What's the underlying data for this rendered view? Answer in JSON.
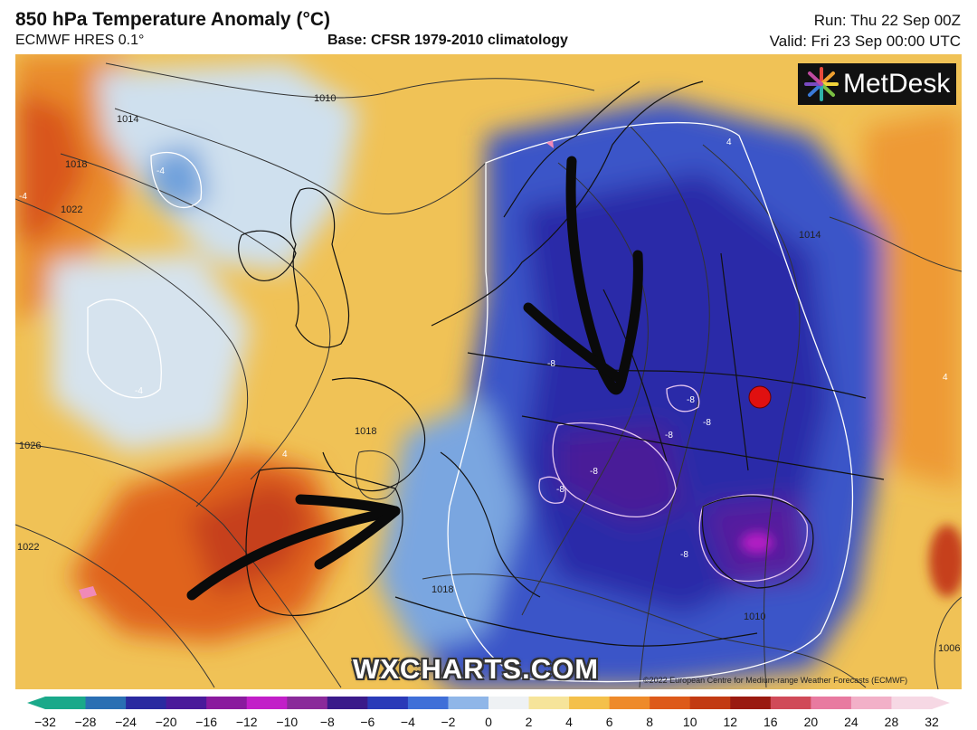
{
  "header": {
    "title": "850 hPa Temperature Anomaly (°C)",
    "model": "ECMWF HRES 0.1°",
    "base": "Base: CFSR 1979-2010 climatology",
    "run": "Run: Thu 22 Sep 00Z",
    "valid": "Valid: Fri 23 Sep 00:00 UTC"
  },
  "logo": {
    "text": "MetDesk",
    "icon": "metdesk-star-icon"
  },
  "watermark": "WXCHARTS.COM",
  "copyright": "©2022 European Centre for Medium-range Weather Forecasts (ECMWF)",
  "colorbar": {
    "ticks": [
      "−32",
      "−28",
      "−24",
      "−20",
      "−16",
      "−12",
      "−10",
      "−8",
      "−6",
      "−4",
      "−2",
      "0",
      "2",
      "4",
      "6",
      "8",
      "10",
      "12",
      "16",
      "20",
      "24",
      "28",
      "32"
    ],
    "colors": [
      "#1aa98a",
      "#2a6fb3",
      "#2a2aa0",
      "#4a1a9a",
      "#8a1a9e",
      "#c21ec8",
      "#8a2a9a",
      "#3a1a8a",
      "#2a3ab8",
      "#3f6fd8",
      "#8fb6e8",
      "#eef1f4",
      "#f6e49a",
      "#f4c04a",
      "#ee8a2a",
      "#dd5a1a",
      "#c23a12",
      "#9a1a10",
      "#d04a58",
      "#e87aa0",
      "#f2b0c8",
      "#f6d8e4"
    ]
  },
  "isobar_labels": [
    {
      "text": "1010"
    },
    {
      "text": "1014"
    },
    {
      "text": "1018"
    },
    {
      "text": "1022"
    },
    {
      "text": "1026"
    },
    {
      "text": "1022"
    },
    {
      "text": "1018"
    },
    {
      "text": "1014"
    },
    {
      "text": "1018"
    },
    {
      "text": "1010"
    },
    {
      "text": "1006"
    }
  ],
  "anomaly_labels": [
    "-4",
    "-4",
    "-4",
    "-8",
    "-8",
    "-8",
    "-8",
    "-8",
    "-8",
    "-8",
    "4",
    "4",
    "4"
  ],
  "colors": {
    "marker": "#e01010",
    "arrow": "#0a0a0a"
  }
}
